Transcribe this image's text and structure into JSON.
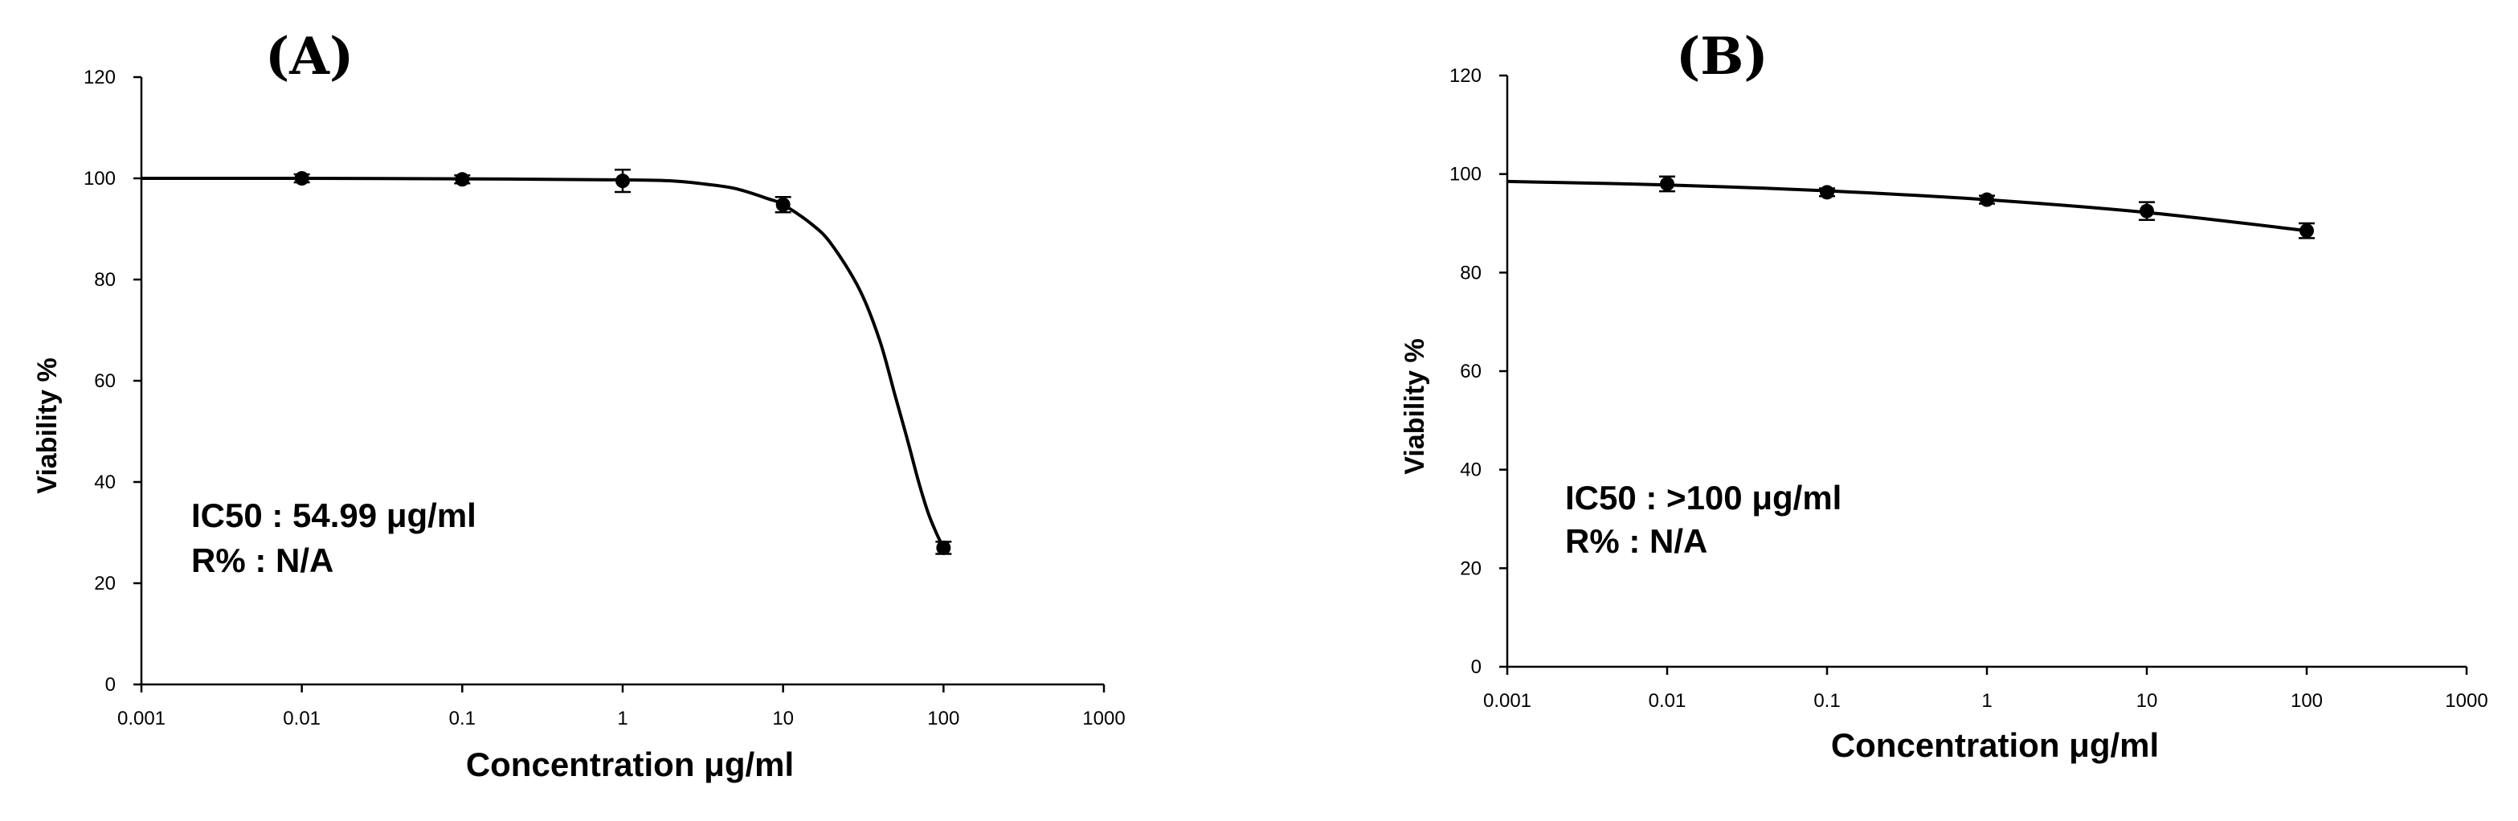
{
  "chart_data": [
    {
      "type": "scatter",
      "panel_label": "(A)",
      "xlabel": "Concentration μg/ml",
      "ylabel": "Viability %",
      "x_scale": "log",
      "xlim": [
        0.001,
        1000
      ],
      "ylim": [
        0,
        120
      ],
      "x_ticks": [
        "0.001",
        "0.01",
        "0.1",
        "1",
        "10",
        "100",
        "1000"
      ],
      "y_ticks": [
        "0",
        "20",
        "40",
        "60",
        "80",
        "100",
        "120"
      ],
      "annotation_lines": [
        "IC50 : 54.99 μg/ml",
        "R% : N/A"
      ],
      "x": [
        0.01,
        0.1,
        1,
        10,
        100
      ],
      "y": [
        100,
        99.8,
        99.5,
        94.8,
        27
      ],
      "y_err": [
        0.8,
        0.8,
        2.2,
        1.5,
        1.2
      ],
      "fit_curve": {
        "x": [
          0.001,
          0.01,
          0.1,
          1,
          2,
          3,
          5,
          8,
          10,
          15,
          20,
          30,
          40,
          50,
          60,
          70,
          80,
          90,
          100
        ],
        "y": [
          100,
          100,
          99.9,
          99.7,
          99.5,
          99,
          98,
          96,
          94.8,
          91,
          87,
          78,
          68,
          57,
          48,
          40,
          34,
          30,
          27
        ]
      }
    },
    {
      "type": "scatter",
      "panel_label": "(B)",
      "xlabel": "Concentration μg/ml",
      "ylabel": "Viability %",
      "x_scale": "log",
      "xlim": [
        0.001,
        1000
      ],
      "ylim": [
        0,
        120
      ],
      "x_ticks": [
        "0.001",
        "0.01",
        "0.1",
        "1",
        "10",
        "100",
        "1000"
      ],
      "y_ticks": [
        "0",
        "20",
        "40",
        "60",
        "80",
        "100",
        "120"
      ],
      "annotation_lines": [
        "IC50 : >100 μg/ml",
        "R% : N/A"
      ],
      "x": [
        0.01,
        0.1,
        1,
        10,
        100
      ],
      "y": [
        98,
        96.3,
        94.8,
        92.5,
        88.5
      ],
      "y_err": [
        1.5,
        0.8,
        0.8,
        1.8,
        1.5
      ],
      "fit_curve": {
        "x": [
          0.001,
          0.01,
          0.1,
          1,
          10,
          100
        ],
        "y": [
          98.5,
          97.8,
          96.6,
          94.8,
          92.2,
          88.5
        ]
      }
    }
  ]
}
